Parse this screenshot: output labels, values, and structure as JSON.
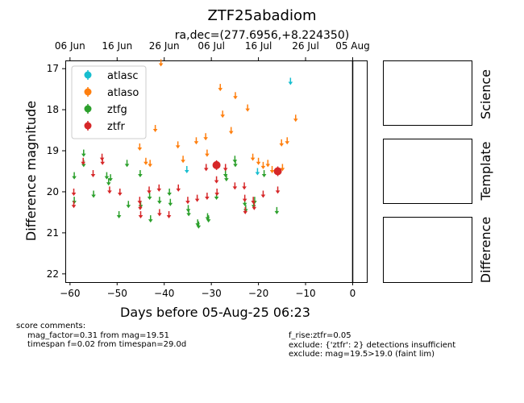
{
  "chart_data": {
    "type": "scatter",
    "title": "ZTF25abadiom",
    "subtitle": "ra,dec=(277.6956,+8.224350)",
    "xlabel": "Days before 05-Aug-25 06:23",
    "ylabel": "Difference magnitude",
    "xlim": [
      -61,
      3
    ],
    "ylim": [
      22.2,
      16.8
    ],
    "y_inverted": true,
    "x_ticks": [
      -60,
      -50,
      -40,
      -30,
      -20,
      -10,
      0
    ],
    "y_ticks": [
      17,
      18,
      19,
      20,
      21,
      22
    ],
    "top_axis_ticks": [
      {
        "x": -60,
        "label": "06 Jun"
      },
      {
        "x": -50,
        "label": "16 Jun"
      },
      {
        "x": -40,
        "label": "26 Jun"
      },
      {
        "x": -30,
        "label": "06 Jul"
      },
      {
        "x": -20,
        "label": "16 Jul"
      },
      {
        "x": -10,
        "label": "26 Jul"
      },
      {
        "x": 0,
        "label": "05 Aug"
      }
    ],
    "vertical_line_x": 0,
    "legend_position": "top-left",
    "grid": false,
    "series": [
      {
        "name": "atlasc",
        "color": "#17becf",
        "upper_limits": [
          [
            -35.2,
            19.45
          ],
          [
            -20.2,
            19.5
          ],
          [
            -13.2,
            17.3
          ]
        ],
        "detections": []
      },
      {
        "name": "atlaso",
        "color": "#ff7f0e",
        "upper_limits": [
          [
            -45.2,
            18.9
          ],
          [
            -43.9,
            19.25
          ],
          [
            -43.0,
            19.3
          ],
          [
            -41.9,
            18.45
          ],
          [
            -40.7,
            16.85
          ],
          [
            -37.1,
            18.85
          ],
          [
            -36.0,
            19.2
          ],
          [
            -33.2,
            18.75
          ],
          [
            -31.2,
            18.65
          ],
          [
            -30.9,
            19.05
          ],
          [
            -28.1,
            17.45
          ],
          [
            -27.6,
            18.1
          ],
          [
            -25.8,
            18.5
          ],
          [
            -24.9,
            17.65
          ],
          [
            -22.3,
            17.95
          ],
          [
            -21.2,
            19.15
          ],
          [
            -20.0,
            19.25
          ],
          [
            -19.0,
            19.35
          ],
          [
            -18.0,
            19.3
          ],
          [
            -17.1,
            19.45
          ],
          [
            -15.1,
            18.8
          ],
          [
            -13.9,
            18.75
          ],
          [
            -12.1,
            18.2
          ],
          [
            -14.9,
            19.4
          ]
        ],
        "detections": []
      },
      {
        "name": "ztfg",
        "color": "#2ca02c",
        "upper_limits": [
          [
            -59.1,
            19.6
          ],
          [
            -59.1,
            20.2
          ],
          [
            -57.1,
            19.05
          ],
          [
            -57.1,
            19.3
          ],
          [
            -55.0,
            20.05
          ],
          [
            -52.2,
            19.6
          ],
          [
            -51.8,
            19.75
          ],
          [
            -51.4,
            19.65
          ],
          [
            -49.6,
            20.55
          ],
          [
            -47.9,
            19.3
          ],
          [
            -47.6,
            20.3
          ],
          [
            -45.1,
            19.55
          ],
          [
            -45.0,
            20.3
          ],
          [
            -43.1,
            20.1
          ],
          [
            -42.9,
            20.65
          ],
          [
            -41.0,
            20.2
          ],
          [
            -38.9,
            20.0
          ],
          [
            -38.7,
            20.25
          ],
          [
            -34.9,
            20.4
          ],
          [
            -34.8,
            20.5
          ],
          [
            -32.9,
            20.75
          ],
          [
            -32.7,
            20.8
          ],
          [
            -30.8,
            20.6
          ],
          [
            -30.6,
            20.65
          ],
          [
            -28.9,
            20.1
          ],
          [
            -27.0,
            19.55
          ],
          [
            -26.8,
            19.65
          ],
          [
            -25.0,
            19.2
          ],
          [
            -24.9,
            19.3
          ],
          [
            -22.9,
            20.25
          ],
          [
            -22.7,
            20.4
          ],
          [
            -21.0,
            20.3
          ],
          [
            -20.8,
            20.2
          ],
          [
            -18.8,
            19.55
          ],
          [
            -16.1,
            20.45
          ]
        ],
        "detections": []
      },
      {
        "name": "ztfr",
        "color": "#d62728",
        "upper_limits": [
          [
            -59.2,
            20.0
          ],
          [
            -59.2,
            20.3
          ],
          [
            -57.2,
            19.25
          ],
          [
            -55.1,
            19.55
          ],
          [
            -53.2,
            19.15
          ],
          [
            -53.1,
            19.25
          ],
          [
            -51.6,
            19.95
          ],
          [
            -49.4,
            20.0
          ],
          [
            -45.2,
            20.2
          ],
          [
            -45.1,
            20.35
          ],
          [
            -45.0,
            20.55
          ],
          [
            -43.2,
            19.95
          ],
          [
            -41.1,
            19.9
          ],
          [
            -41.0,
            20.5
          ],
          [
            -39.0,
            20.55
          ],
          [
            -37.0,
            19.9
          ],
          [
            -35.0,
            20.2
          ],
          [
            -33.0,
            20.15
          ],
          [
            -31.1,
            19.4
          ],
          [
            -30.9,
            20.1
          ],
          [
            -28.9,
            19.7
          ],
          [
            -28.8,
            20.0
          ],
          [
            -27.0,
            19.4
          ],
          [
            -25.0,
            19.85
          ],
          [
            -23.0,
            19.85
          ],
          [
            -22.9,
            20.15
          ],
          [
            -22.8,
            20.45
          ],
          [
            -21.1,
            20.2
          ],
          [
            -20.9,
            20.35
          ],
          [
            -19.0,
            20.05
          ],
          [
            -15.9,
            19.95
          ]
        ],
        "detections": [
          [
            -28.9,
            19.35
          ],
          [
            -15.9,
            19.5
          ]
        ]
      }
    ]
  },
  "side_panels": [
    {
      "label": "Science"
    },
    {
      "label": "Template"
    },
    {
      "label": "Difference"
    }
  ],
  "comments": {
    "left": {
      "header": "score comments:",
      "lines": [
        "mag_factor=0.31 from mag=19.51",
        "timespan f=0.02 from timespan=29.0d"
      ]
    },
    "right": {
      "lines": [
        "f_rise:ztfr=0.05",
        "exclude: {'ztfr': 2} detections insufficient",
        "exclude: mag=19.5>19.0 (faint lim)"
      ]
    }
  }
}
